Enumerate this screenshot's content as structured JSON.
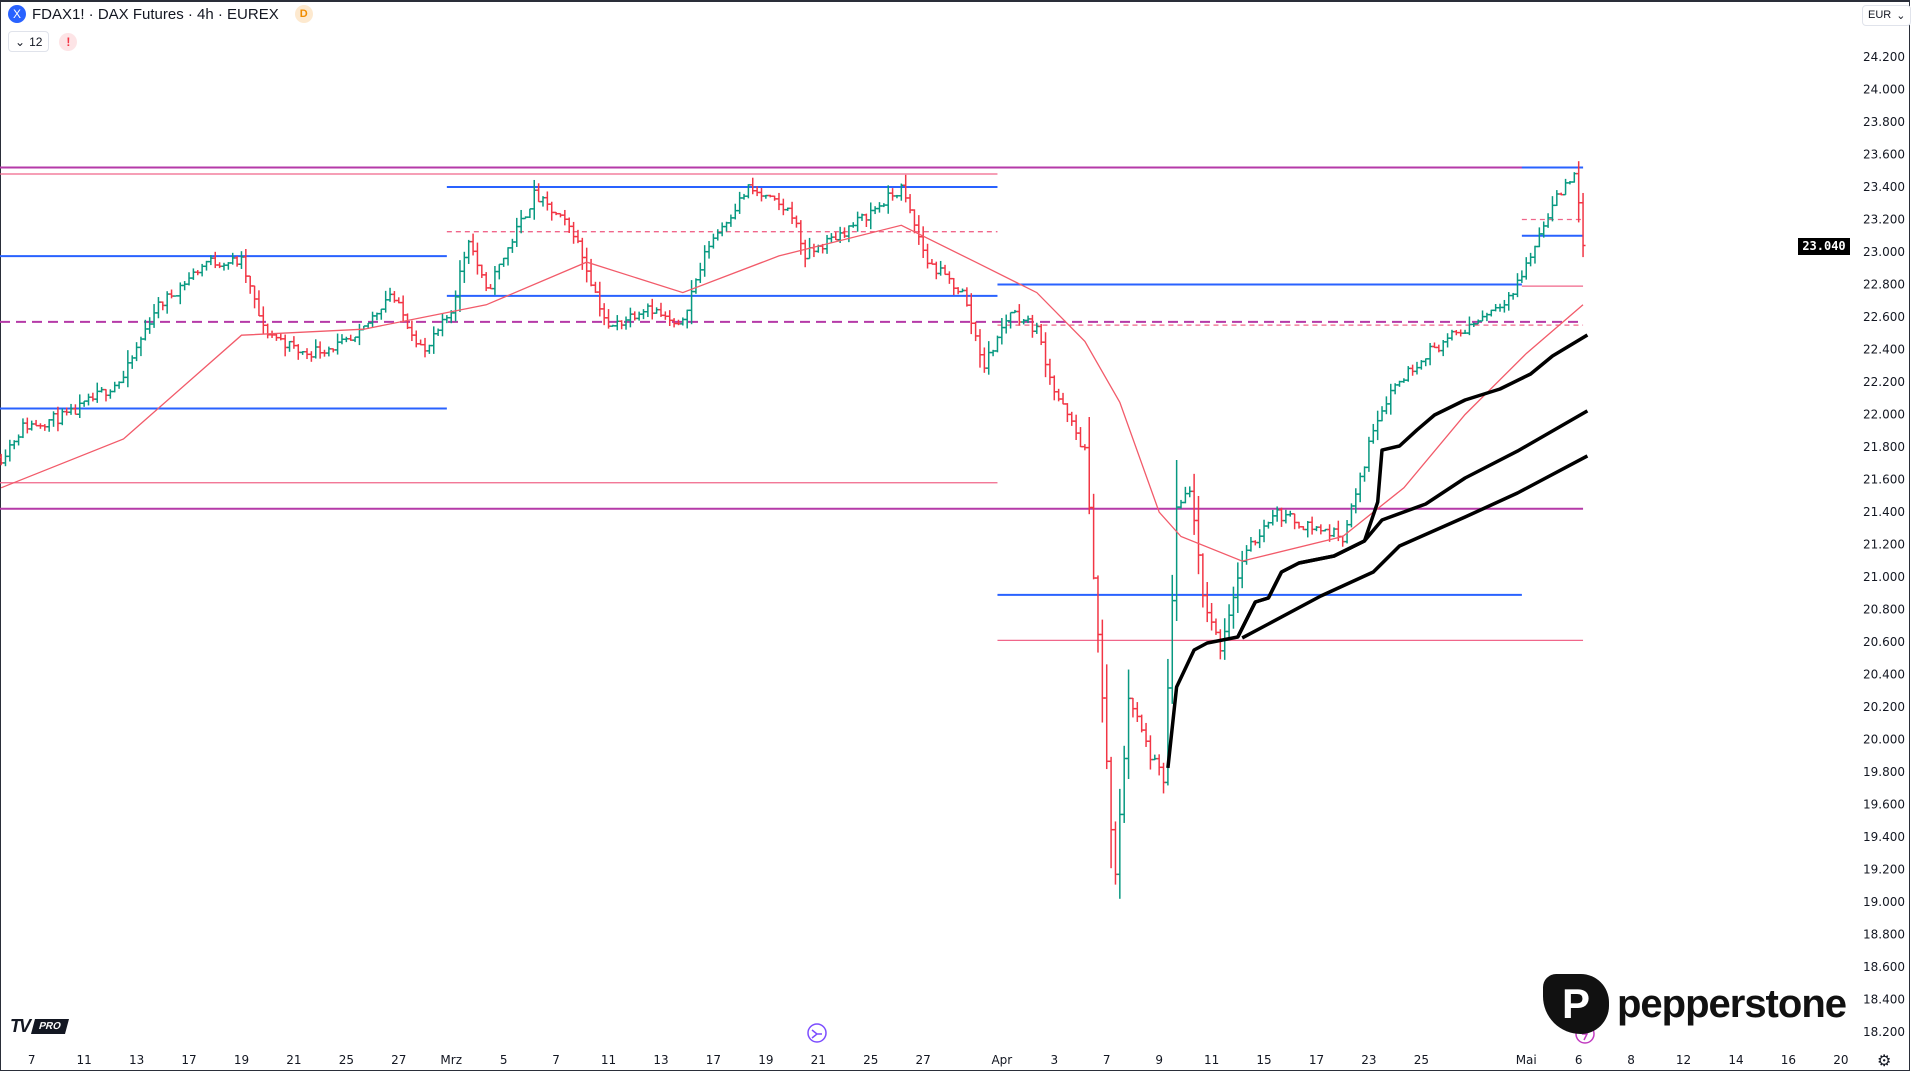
{
  "header": {
    "symbol_title": "FDAX1! · DAX Futures · 4h · EUREX",
    "symbol_icon": "X",
    "data_badge": "D",
    "indicators_toggle_count": "12",
    "warning_label": "!",
    "currency": "EUR",
    "last_price": "23.040"
  },
  "branding": {
    "tradingview": "TV",
    "plan": "PRO",
    "broker": "pepperstone",
    "broker_mark": "P"
  },
  "colors": {
    "up": "#089981",
    "down": "#f23645",
    "blue_level": "#2962ff",
    "magenta_level": "#b53aa8",
    "red_level": "#f0668a",
    "ema": "#f25b6a",
    "trend": "#000000"
  },
  "chart_data": {
    "type": "ohlc-bar",
    "instrument": "FDAX1!",
    "interval": "4h",
    "y_ticks": [
      "24.200",
      "24.000",
      "23.800",
      "23.600",
      "23.400",
      "23.200",
      "23.000",
      "22.800",
      "22.600",
      "22.400",
      "22.200",
      "22.000",
      "21.800",
      "21.600",
      "21.400",
      "21.200",
      "21.000",
      "20.800",
      "20.600",
      "20.400",
      "20.200",
      "20.000",
      "19.800",
      "19.600",
      "19.400",
      "19.200",
      "19.000",
      "18.800",
      "18.600",
      "18.400",
      "18.200"
    ],
    "ylim": [
      18100,
      24450
    ],
    "x_ticks": [
      {
        "label": "7",
        "date": "02-07"
      },
      {
        "label": "11",
        "date": "02-11"
      },
      {
        "label": "13",
        "date": "02-13"
      },
      {
        "label": "17",
        "date": "02-17"
      },
      {
        "label": "19",
        "date": "02-19"
      },
      {
        "label": "21",
        "date": "02-21"
      },
      {
        "label": "25",
        "date": "02-25"
      },
      {
        "label": "27",
        "date": "02-27"
      },
      {
        "label": "Mrz",
        "date": "03-03"
      },
      {
        "label": "5",
        "date": "03-05"
      },
      {
        "label": "7",
        "date": "03-07"
      },
      {
        "label": "11",
        "date": "03-11"
      },
      {
        "label": "13",
        "date": "03-13"
      },
      {
        "label": "17",
        "date": "03-17"
      },
      {
        "label": "19",
        "date": "03-19"
      },
      {
        "label": "21",
        "date": "03-21"
      },
      {
        "label": "25",
        "date": "03-25"
      },
      {
        "label": "27",
        "date": "03-27"
      },
      {
        "label": "Apr",
        "date": "04-01"
      },
      {
        "label": "3",
        "date": "04-03"
      },
      {
        "label": "7",
        "date": "04-07"
      },
      {
        "label": "9",
        "date": "04-09"
      },
      {
        "label": "11",
        "date": "04-11"
      },
      {
        "label": "15",
        "date": "04-15"
      },
      {
        "label": "17",
        "date": "04-17"
      },
      {
        "label": "23",
        "date": "04-23"
      },
      {
        "label": "25",
        "date": "04-25"
      },
      {
        "label": "Mai",
        "date": "05-02"
      },
      {
        "label": "6",
        "date": "05-06"
      },
      {
        "label": "8",
        "date": "05-08"
      },
      {
        "label": "12",
        "date": "05-12"
      },
      {
        "label": "14",
        "date": "05-14"
      },
      {
        "label": "16",
        "date": "05-16"
      },
      {
        "label": "20",
        "date": "05-20"
      }
    ],
    "price_path": [
      [
        "02-05 20:00",
        21737
      ],
      [
        "02-06 16:00",
        21924
      ],
      [
        "02-10 12:00",
        22000
      ],
      [
        "02-12 12:00",
        22225
      ],
      [
        "02-13 16:00",
        22640
      ],
      [
        "02-17 16:00",
        22940
      ],
      [
        "02-19 00:00",
        22940
      ],
      [
        "02-19 20:00",
        22525
      ],
      [
        "02-21 08:00",
        22375
      ],
      [
        "02-25 08:00",
        22450
      ],
      [
        "02-26 16:00",
        22750
      ],
      [
        "02-28 00:00",
        22375
      ],
      [
        "03-03 00:00",
        22640
      ],
      [
        "03-03 16:00",
        23090
      ],
      [
        "03-04 08:00",
        22750
      ],
      [
        "03-06 04:00",
        23350
      ],
      [
        "03-07 16:00",
        23125
      ],
      [
        "03-11 00:00",
        22525
      ],
      [
        "03-12 12:00",
        22675
      ],
      [
        "03-13 16:00",
        22525
      ],
      [
        "03-14 20:00",
        23050
      ],
      [
        "03-18 08:00",
        23390
      ],
      [
        "03-20 00:00",
        23240
      ],
      [
        "03-20 12:00",
        22975
      ],
      [
        "03-24 08:00",
        23165
      ],
      [
        "03-26 04:00",
        23390
      ],
      [
        "03-27 04:00",
        22940
      ],
      [
        "03-28 12:00",
        22750
      ],
      [
        "03-31 08:00",
        22300
      ],
      [
        "04-01 08:00",
        22640
      ],
      [
        "04-02 08:00",
        22525
      ],
      [
        "04-03 00:00",
        22150
      ],
      [
        "04-04 04:00",
        21775
      ],
      [
        "04-04 16:00",
        20650
      ],
      [
        "04-07 04:00",
        19450
      ],
      [
        "04-07 08:00",
        19150
      ],
      [
        "04-07 20:00",
        20270
      ],
      [
        "04-08 16:00",
        19900
      ],
      [
        "04-09 04:00",
        19750
      ],
      [
        "04-09 16:00",
        21400
      ],
      [
        "04-10 04:00",
        21550
      ],
      [
        "04-10 16:00",
        20880
      ],
      [
        "04-11 08:00",
        20570
      ],
      [
        "04-14 04:00",
        21100
      ],
      [
        "04-15 08:00",
        21400
      ],
      [
        "04-16 12:00",
        21325
      ],
      [
        "04-22 00:00",
        21250
      ],
      [
        "04-22 16:00",
        21590
      ],
      [
        "04-23 04:00",
        21925
      ],
      [
        "04-23 20:00",
        22150
      ],
      [
        "04-25 04:00",
        22375
      ],
      [
        "04-28 16:00",
        22525
      ],
      [
        "04-30 12:00",
        22750
      ],
      [
        "05-02 04:00",
        22975
      ],
      [
        "05-02 20:00",
        23240
      ],
      [
        "05-05 20:00",
        23500
      ],
      [
        "05-06 04:00",
        23040
      ]
    ],
    "ema_line": [
      [
        "02-05 20:00",
        21549
      ],
      [
        "02-12 12:00",
        21849
      ],
      [
        "02-19 00:00",
        22488
      ],
      [
        "02-25 16:00",
        22525
      ],
      [
        "03-04 08:00",
        22675
      ],
      [
        "03-10 04:00",
        22938
      ],
      [
        "03-13 20:00",
        22750
      ],
      [
        "03-19 12:00",
        22976
      ],
      [
        "03-26 04:00",
        23164
      ],
      [
        "03-31 00:00",
        22938
      ],
      [
        "04-02 08:00",
        22750
      ],
      [
        "04-04 04:00",
        22450
      ],
      [
        "04-07 12:00",
        22075
      ],
      [
        "04-09 00:00",
        21399
      ],
      [
        "04-09 20:00",
        21249
      ],
      [
        "04-14 04:00",
        21098
      ],
      [
        "04-22 00:00",
        21249
      ],
      [
        "04-24 08:00",
        21549
      ],
      [
        "04-28 16:00",
        22000
      ],
      [
        "05-02 00:00",
        22375
      ],
      [
        "05-06 04:00",
        22675
      ]
    ],
    "trend_lines": [
      [
        [
          "04-09 08:00",
          19825
        ],
        [
          "04-09 16:00",
          20323
        ],
        [
          "04-10 08:00",
          20551
        ],
        [
          "04-10 20:00",
          20594
        ],
        [
          "04-14 00:00",
          20631
        ],
        [
          "04-14 16:00",
          20846
        ],
        [
          "04-15 04:00",
          20871
        ],
        [
          "04-15 16:00",
          21031
        ],
        [
          "04-16 08:00",
          21086
        ],
        [
          "04-17 16:00",
          21129
        ],
        [
          "04-22 20:00",
          21222
        ],
        [
          "04-23 08:00",
          21461
        ],
        [
          "04-23 12:00",
          21781
        ],
        [
          "04-24 04:00",
          21806
        ],
        [
          "04-24 20:00",
          21905
        ],
        [
          "04-25 12:00",
          21997
        ],
        [
          "04-28 16:00",
          22089
        ],
        [
          "04-30 00:00",
          22157
        ],
        [
          "05-02 04:00",
          22249
        ],
        [
          "05-05 00:00",
          22360
        ],
        [
          "05-06 08:00",
          22489
        ]
      ],
      [
        [
          "04-14 00:00",
          20631
        ],
        [
          "04-14 16:00",
          20846
        ],
        [
          "04-15 04:00",
          20871
        ],
        [
          "04-15 16:00",
          21031
        ],
        [
          "04-16 08:00",
          21086
        ],
        [
          "04-17 16:00",
          21129
        ],
        [
          "04-22 20:00",
          21222
        ],
        [
          "04-23 12:00",
          21351
        ],
        [
          "04-25 04:00",
          21449
        ],
        [
          "04-28 16:00",
          21609
        ],
        [
          "04-30 16:00",
          21775
        ],
        [
          "05-06 08:00",
          22022
        ]
      ],
      [
        [
          "04-14 04:00",
          20625
        ],
        [
          "04-15 04:00",
          20711
        ],
        [
          "04-17 04:00",
          20883
        ],
        [
          "04-23 04:00",
          21031
        ],
        [
          "04-24 04:00",
          21191
        ],
        [
          "04-28 16:00",
          21369
        ],
        [
          "04-30 16:00",
          21517
        ],
        [
          "05-06 08:00",
          21745
        ]
      ]
    ],
    "levels": [
      {
        "price": 23520,
        "from": null,
        "to": "05-06 04:00",
        "color": "magenta",
        "style": "solid"
      },
      {
        "price": 23480,
        "from": null,
        "to": "03-31 20:00",
        "color": "red",
        "style": "solid"
      },
      {
        "price": 23400,
        "from": "02-28 20:00",
        "to": "03-31 20:00",
        "color": "blue",
        "style": "solid"
      },
      {
        "price": 23125,
        "from": "02-28 20:00",
        "to": "03-31 20:00",
        "color": "red",
        "style": "dashed"
      },
      {
        "price": 22975,
        "from": null,
        "to": "02-28 20:00",
        "color": "blue",
        "style": "solid"
      },
      {
        "price": 22730,
        "from": "02-28 20:00",
        "to": "03-31 20:00",
        "color": "blue",
        "style": "solid"
      },
      {
        "price": 22570,
        "from": null,
        "to": "05-06 04:00",
        "color": "magenta",
        "style": "dashed"
      },
      {
        "price": 22550,
        "from": "03-31 20:00",
        "to": "05-06 04:00",
        "color": "red",
        "style": "dashed"
      },
      {
        "price": 22037,
        "from": null,
        "to": "02-28 20:00",
        "color": "blue",
        "style": "solid"
      },
      {
        "price": 21580,
        "from": null,
        "to": "03-31 20:00",
        "color": "red",
        "style": "solid"
      },
      {
        "price": 21420,
        "from": null,
        "to": "05-06 04:00",
        "color": "magenta",
        "style": "solid"
      },
      {
        "price": 22800,
        "from": "03-31 20:00",
        "to": "04-30 20:00",
        "color": "blue",
        "style": "solid"
      },
      {
        "price": 22790,
        "from": "04-30 20:00",
        "to": "05-06 04:00",
        "color": "red",
        "style": "solid"
      },
      {
        "price": 20890,
        "from": "03-31 20:00",
        "to": "04-30 20:00",
        "color": "blue",
        "style": "solid"
      },
      {
        "price": 20610,
        "from": "03-31 20:00",
        "to": "05-06 04:00",
        "color": "red",
        "style": "solid"
      },
      {
        "price": 23520,
        "from": "04-30 20:00",
        "to": "05-06 04:00",
        "color": "blue",
        "style": "solid"
      },
      {
        "price": 23100,
        "from": "04-30 20:00",
        "to": "05-06 04:00",
        "color": "blue",
        "style": "solid"
      },
      {
        "price": 23200,
        "from": "04-30 20:00",
        "to": "05-06 04:00",
        "color": "red",
        "style": "dashed"
      }
    ],
    "last_value": 23040
  }
}
